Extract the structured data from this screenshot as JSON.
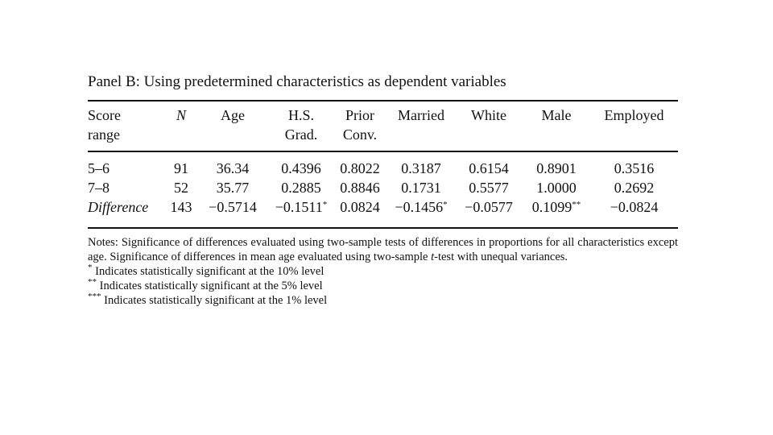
{
  "panel_title": "Panel B: Using predetermined characteristics as dependent variables",
  "columns": [
    {
      "line1": "Score",
      "line2": "range",
      "italic": false
    },
    {
      "line1": "N",
      "line2": "",
      "italic": true
    },
    {
      "line1": "Age",
      "line2": "",
      "italic": false
    },
    {
      "line1": "H.S.",
      "line2": "Grad.",
      "italic": false
    },
    {
      "line1": "Prior",
      "line2": "Conv.",
      "italic": false
    },
    {
      "line1": "Married",
      "line2": "",
      "italic": false
    },
    {
      "line1": "White",
      "line2": "",
      "italic": false
    },
    {
      "line1": "Male",
      "line2": "",
      "italic": false
    },
    {
      "line1": "Employed",
      "line2": "",
      "italic": false
    }
  ],
  "rows": [
    {
      "cells": [
        {
          "v": "5–6",
          "s": ""
        },
        {
          "v": "91",
          "s": ""
        },
        {
          "v": "36.34",
          "s": ""
        },
        {
          "v": "0.4396",
          "s": ""
        },
        {
          "v": "0.8022",
          "s": ""
        },
        {
          "v": "0.3187",
          "s": ""
        },
        {
          "v": "0.6154",
          "s": ""
        },
        {
          "v": "0.8901",
          "s": ""
        },
        {
          "v": "0.3516",
          "s": ""
        }
      ]
    },
    {
      "cells": [
        {
          "v": "7–8",
          "s": ""
        },
        {
          "v": "52",
          "s": ""
        },
        {
          "v": "35.77",
          "s": ""
        },
        {
          "v": "0.2885",
          "s": ""
        },
        {
          "v": "0.8846",
          "s": ""
        },
        {
          "v": "0.1731",
          "s": ""
        },
        {
          "v": "0.5577",
          "s": ""
        },
        {
          "v": "1.0000",
          "s": ""
        },
        {
          "v": "0.2692",
          "s": ""
        }
      ]
    },
    {
      "cells": [
        {
          "v": "Difference",
          "s": ""
        },
        {
          "v": "143",
          "s": ""
        },
        {
          "v": "−0.5714",
          "s": ""
        },
        {
          "v": "−0.1511",
          "s": "*"
        },
        {
          "v": "0.0824",
          "s": ""
        },
        {
          "v": "−0.1456",
          "s": "*"
        },
        {
          "v": "−0.0577",
          "s": ""
        },
        {
          "v": "0.1099",
          "s": "**"
        },
        {
          "v": "−0.0824",
          "s": ""
        }
      ]
    }
  ],
  "notes": {
    "text_a": "Notes: Significance of differences evaluated using two-sample tests of differences in proportions for all characteristics except age. Significance of differences in mean age evaluated using two-sample ",
    "text_t": "t",
    "text_b": "-test with unequal variances.",
    "footnotes": [
      {
        "mark": "*",
        "text": " Indicates statistically significant at the 10% level"
      },
      {
        "mark": "**",
        "text": " Indicates statistically significant at the 5% level"
      },
      {
        "mark": "***",
        "text": " Indicates statistically significant at the 1% level"
      }
    ]
  }
}
